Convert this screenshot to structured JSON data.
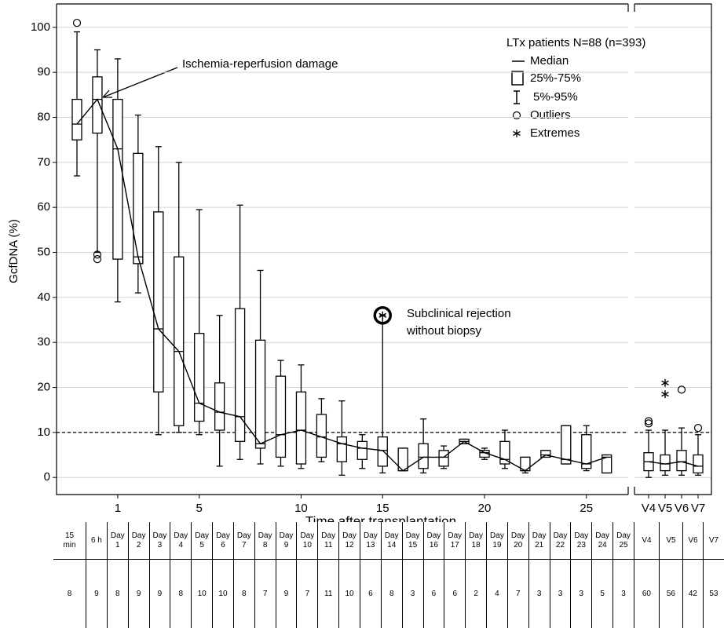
{
  "chart_data": {
    "type": "box",
    "ylabel": "GcfDNA (%)",
    "xlabel": "Time after transplantation",
    "ylim": [
      -3.8,
      105.2
    ],
    "yticks": [
      0,
      10,
      20,
      30,
      40,
      50,
      60,
      70,
      80,
      90,
      100
    ],
    "xticks": [
      {
        "value": 2,
        "label": "1"
      },
      {
        "value": 6,
        "label": "5"
      },
      {
        "value": 11,
        "label": "10"
      },
      {
        "value": 15,
        "label": "15"
      },
      {
        "value": 20,
        "label": "20"
      },
      {
        "value": 25,
        "label": "25"
      },
      {
        "value": 27,
        "label": "V4"
      },
      {
        "value": 28,
        "label": "V5"
      },
      {
        "value": 29,
        "label": "V6"
      },
      {
        "value": 30,
        "label": "V7"
      }
    ],
    "grid": true,
    "reference_line": 10,
    "box_color": "#000000",
    "boxes": [
      {
        "low": 67,
        "q1": 75,
        "median": 78.5,
        "q3": 84,
        "high": 99,
        "outliers": [
          101
        ]
      },
      {
        "low": 50,
        "q1": 76.5,
        "median": 84,
        "q3": 89,
        "high": 95,
        "outliers": [
          49.5,
          48.5
        ]
      },
      {
        "low": 39,
        "q1": 48.5,
        "median": 73,
        "q3": 84,
        "high": 93
      },
      {
        "low": 41,
        "q1": 47.5,
        "median": 49,
        "q3": 72,
        "high": 80.5
      },
      {
        "low": 9.5,
        "q1": 19,
        "median": 33,
        "q3": 59,
        "high": 73.5
      },
      {
        "low": 10,
        "q1": 11.5,
        "median": 28,
        "q3": 49,
        "high": 70
      },
      {
        "low": 9.5,
        "q1": 12.5,
        "median": 16.5,
        "q3": 32,
        "high": 59.5
      },
      {
        "low": 2.5,
        "q1": 10.5,
        "median": 14.5,
        "q3": 21,
        "high": 36
      },
      {
        "low": 4,
        "q1": 8,
        "median": 13.5,
        "q3": 37.5,
        "high": 60.5
      },
      {
        "low": 3,
        "q1": 6.5,
        "median": 7.5,
        "q3": 30.5,
        "high": 46
      },
      {
        "low": 2.5,
        "q1": 4.5,
        "median": 9.5,
        "q3": 22.5,
        "high": 26
      },
      {
        "low": 2,
        "q1": 3,
        "median": 10.5,
        "q3": 19,
        "high": 25
      },
      {
        "low": 3.5,
        "q1": 4.5,
        "median": 9,
        "q3": 14,
        "high": 17.5
      },
      {
        "low": 0.5,
        "q1": 3.5,
        "median": 7.5,
        "q3": 9,
        "high": 17
      },
      {
        "low": 2,
        "q1": 4,
        "median": 6.5,
        "q3": 8,
        "high": 9.5
      },
      {
        "low": 1,
        "q1": 2.5,
        "median": 6,
        "q3": 9,
        "high": 36,
        "extremes": [
          36
        ]
      },
      {
        "low": 1.5,
        "q1": 1.5,
        "median": 1.5,
        "q3": 6.5,
        "high": 6.5
      },
      {
        "low": 1,
        "q1": 2,
        "median": 4.5,
        "q3": 7.5,
        "high": 13
      },
      {
        "low": 2,
        "q1": 2.5,
        "median": 4.5,
        "q3": 6,
        "high": 7
      },
      {
        "low": 7.5,
        "q1": 7.5,
        "median": 8,
        "q3": 8.5,
        "high": 8.5
      },
      {
        "low": 4,
        "q1": 4.5,
        "median": 5.5,
        "q3": 6,
        "high": 6.5
      },
      {
        "low": 2,
        "q1": 3,
        "median": 4,
        "q3": 8,
        "high": 10.5
      },
      {
        "low": 1,
        "q1": 1.5,
        "median": 1.5,
        "q3": 4.5,
        "high": 4.5
      },
      {
        "low": 4.5,
        "q1": 4.5,
        "median": 5,
        "q3": 6,
        "high": 6
      },
      {
        "low": 3,
        "q1": 3,
        "median": 4,
        "q3": 11.5,
        "high": 11.5
      },
      {
        "low": 1.5,
        "q1": 2,
        "median": 3,
        "q3": 9.5,
        "high": 11.5
      },
      {
        "low": 1,
        "q1": 1,
        "median": 4.5,
        "q3": 5,
        "high": 5
      },
      {
        "low": 0,
        "q1": 1.5,
        "median": 3.5,
        "q3": 5.5,
        "high": 10.5,
        "outliers": [
          12.5,
          12
        ]
      },
      {
        "low": 0.5,
        "q1": 1.5,
        "median": 3,
        "q3": 5,
        "high": 10.5,
        "extremes": [
          21,
          18.5
        ]
      },
      {
        "low": 0.5,
        "q1": 1.5,
        "median": 3.5,
        "q3": 6,
        "high": 11,
        "outliers": [
          19.5
        ]
      },
      {
        "low": 0.5,
        "q1": 1,
        "median": 2.5,
        "q3": 5,
        "high": 9.5,
        "outliers": [
          11
        ]
      }
    ],
    "legend": {
      "title": "LTx patients N=88 (n=393)",
      "entries": [
        "Median",
        "25%-75%",
        "5%-95%",
        "Outliers",
        "Extremes"
      ]
    },
    "annotations": [
      {
        "text": "Ischemia-reperfusion damage"
      },
      {
        "lines": [
          "Subclinical rejection",
          "without biopsy"
        ]
      }
    ]
  },
  "table": {
    "header": [
      "15 min",
      "6 h",
      "Day 1",
      "Day 2",
      "Day 3",
      "Day 4",
      "Day 5",
      "Day 6",
      "Day 7",
      "Day 8",
      "Day 9",
      "Day 10",
      "Day 11",
      "Day 12",
      "Day 13",
      "Day 14",
      "Day 15",
      "Day 16",
      "Day 17",
      "Day 18",
      "Day 19",
      "Day 20",
      "Day 21",
      "Day 22",
      "Day 23",
      "Day 24",
      "Day 25",
      "V4",
      "V5",
      "V6",
      "V7"
    ],
    "counts": [
      "8",
      "9",
      "8",
      "9",
      "9",
      "8",
      "10",
      "10",
      "8",
      "7",
      "9",
      "7",
      "11",
      "10",
      "6",
      "8",
      "3",
      "6",
      "6",
      "2",
      "4",
      "7",
      "3",
      "3",
      "3",
      "5",
      "3",
      "60",
      "56",
      "42",
      "53"
    ]
  }
}
